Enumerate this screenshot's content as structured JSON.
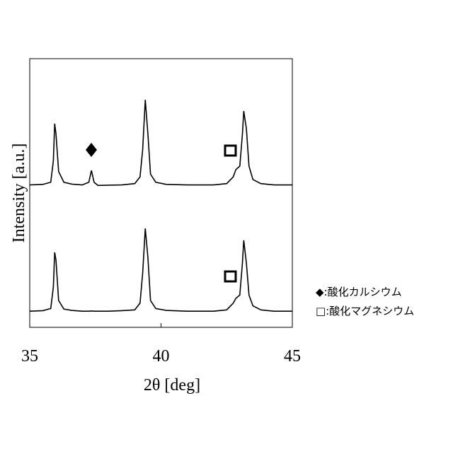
{
  "chart_data": {
    "type": "line",
    "xlabel": "2θ  [deg]",
    "ylabel": "Intensity  [a.u.]",
    "x": [
      35.0,
      35.5,
      35.8,
      35.9,
      35.95,
      36.0,
      36.1,
      36.3,
      36.6,
      37.0,
      37.25,
      37.35,
      37.45,
      37.6,
      38.0,
      38.5,
      39.0,
      39.2,
      39.3,
      39.4,
      39.5,
      39.6,
      39.8,
      40.2,
      41.0,
      42.0,
      42.5,
      42.75,
      42.85,
      43.0,
      43.1,
      43.15,
      43.25,
      43.35,
      43.5,
      43.8,
      44.3,
      45.0
    ],
    "series": [
      {
        "color": "#000000",
        "values": [
          53,
          53.2,
          54,
          62,
          75.8,
          72,
          58,
          54,
          53.3,
          53,
          54,
          58.4,
          54,
          52.8,
          52.9,
          53,
          53.5,
          56,
          66,
          84.7,
          72,
          57,
          54,
          53.2,
          53,
          53,
          53.5,
          56,
          58.7,
          60,
          72,
          80.5,
          74,
          60,
          55,
          53.5,
          53,
          53
        ]
      },
      {
        "color": "#000000",
        "values": [
          6,
          6.2,
          7,
          15,
          27.9,
          25,
          10,
          6.8,
          6.3,
          6,
          6,
          6.1,
          6,
          6,
          6,
          6.2,
          6.5,
          9,
          20,
          36.8,
          26,
          10,
          7,
          6.3,
          6,
          6,
          6.5,
          9,
          10.8,
          12,
          24,
          32.4,
          24,
          12,
          8,
          6.5,
          6,
          6
        ]
      }
    ],
    "xlim": [
      35,
      45
    ],
    "xticks": [
      35,
      40,
      45
    ],
    "ylim": [
      0,
      100
    ],
    "legend": [
      "◆:酸化カルシウム",
      "□:酸化マグネシウム"
    ]
  }
}
